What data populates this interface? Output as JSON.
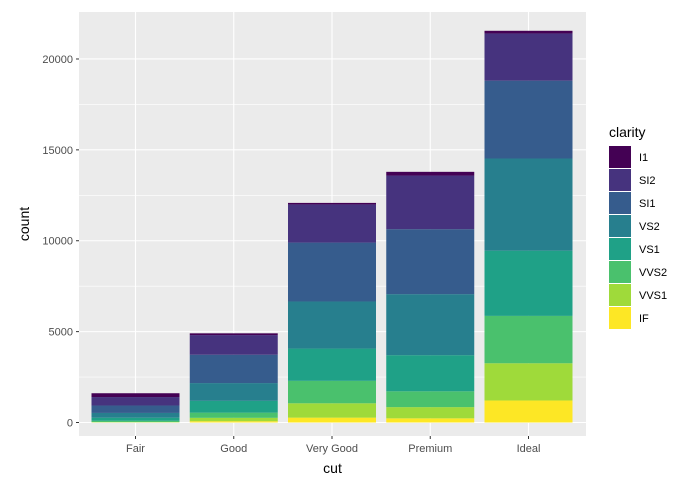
{
  "chart_data": {
    "type": "bar",
    "stacked": true,
    "xlabel": "cut",
    "ylabel": "count",
    "ylim": [
      0,
      22000
    ],
    "y_ticks": [
      0,
      5000,
      10000,
      15000,
      20000
    ],
    "y_tick_labels": [
      "0",
      "5000",
      "10000",
      "15000",
      "20000"
    ],
    "categories": [
      "Fair",
      "Good",
      "Very Good",
      "Premium",
      "Ideal"
    ],
    "grid": true,
    "legend_position": "right",
    "legend_title": "clarity",
    "series": [
      {
        "name": "I1",
        "color": "#440154",
        "values": [
          210,
          96,
          84,
          205,
          146
        ]
      },
      {
        "name": "SI2",
        "color": "#46337E",
        "values": [
          466,
          1081,
          2100,
          2949,
          2598
        ]
      },
      {
        "name": "SI1",
        "color": "#365C8D",
        "values": [
          408,
          1560,
          3240,
          3575,
          4282
        ]
      },
      {
        "name": "VS2",
        "color": "#277F8E",
        "values": [
          261,
          978,
          2591,
          3357,
          5071
        ]
      },
      {
        "name": "VS1",
        "color": "#1FA187",
        "values": [
          170,
          648,
          1775,
          1989,
          3589
        ]
      },
      {
        "name": "VVS2",
        "color": "#4AC16D",
        "values": [
          69,
          286,
          1235,
          870,
          2606
        ]
      },
      {
        "name": "VVS1",
        "color": "#9FDA3A",
        "values": [
          17,
          186,
          789,
          616,
          2047
        ]
      },
      {
        "name": "IF",
        "color": "#FDE725",
        "values": [
          9,
          71,
          268,
          230,
          1212
        ]
      }
    ]
  }
}
